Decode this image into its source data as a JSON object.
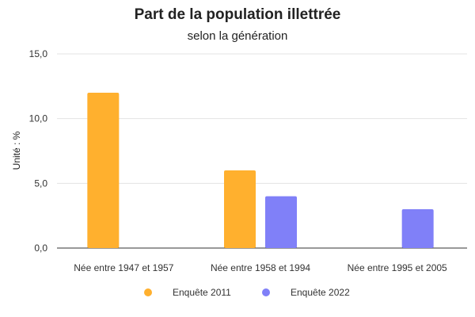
{
  "chart_data": {
    "type": "bar",
    "title": "Part de la population illettrée",
    "subtitle": "selon la génération",
    "xlabel": "",
    "ylabel": "Unité : %",
    "ylim": [
      0,
      15
    ],
    "yticks": [
      "0,0",
      "5,0",
      "10,0",
      "15,0"
    ],
    "ytick_values": [
      0,
      5,
      10,
      15
    ],
    "categories": [
      "Née entre 1947 et 1957",
      "Née entre 1958 et 1994",
      "Née entre 1995 et 2005"
    ],
    "series": [
      {
        "name": "Enquête 2011",
        "color": "#FFB02E",
        "values": [
          12,
          6,
          null
        ]
      },
      {
        "name": "Enquête 2022",
        "color": "#8080F8",
        "values": [
          null,
          4,
          3
        ]
      }
    ],
    "grid": true,
    "legend_position": "bottom"
  }
}
